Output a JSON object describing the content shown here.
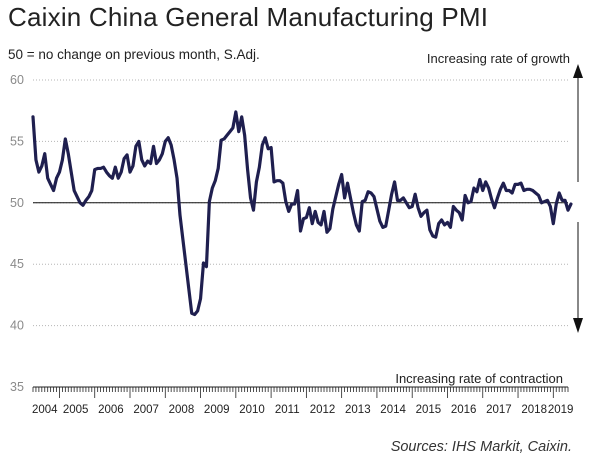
{
  "title": "Caixin China General Manufacturing PMI",
  "subtitle": "50 = no change on previous month, S.Adj.",
  "source": "Sources: IHS Markit, Caixin.",
  "chart_data": {
    "type": "line",
    "title": "Caixin China General Manufacturing PMI",
    "ylim": [
      35,
      60
    ],
    "yticks": [
      "60",
      "55",
      "50",
      "45",
      "40",
      "35"
    ],
    "x_range": [
      "2004-04",
      "2019-06"
    ],
    "x_labels": [
      "2004",
      "2005",
      "2006",
      "2007",
      "2008",
      "2009",
      "2010",
      "2011",
      "2012",
      "2013",
      "2014",
      "2015",
      "2016",
      "2017",
      "2018",
      "2019"
    ],
    "reference_line": 50,
    "annotations": {
      "top": "Increasing rate of growth",
      "bottom": "Increasing rate of contraction"
    },
    "series": [
      {
        "color": "#1f1f4f",
        "points": [
          [
            "2004-04",
            57.0
          ],
          [
            "2004-05",
            53.5
          ],
          [
            "2004-06",
            52.5
          ],
          [
            "2004-07",
            53.0
          ],
          [
            "2004-08",
            54.0
          ],
          [
            "2004-09",
            52.0
          ],
          [
            "2004-10",
            51.5
          ],
          [
            "2004-11",
            51.0
          ],
          [
            "2004-12",
            52.0
          ],
          [
            "2005-01",
            52.5
          ],
          [
            "2005-02",
            53.5
          ],
          [
            "2005-03",
            55.2
          ],
          [
            "2005-04",
            54.0
          ],
          [
            "2005-05",
            52.5
          ],
          [
            "2005-06",
            51.0
          ],
          [
            "2005-07",
            50.5
          ],
          [
            "2005-08",
            50.0
          ],
          [
            "2005-09",
            49.8
          ],
          [
            "2005-10",
            50.2
          ],
          [
            "2005-11",
            50.5
          ],
          [
            "2005-12",
            51.0
          ],
          [
            "2006-01",
            52.7
          ],
          [
            "2006-02",
            52.8
          ],
          [
            "2006-03",
            52.8
          ],
          [
            "2006-04",
            52.9
          ],
          [
            "2006-05",
            52.5
          ],
          [
            "2006-06",
            52.2
          ],
          [
            "2006-07",
            52.0
          ],
          [
            "2006-08",
            52.9
          ],
          [
            "2006-09",
            52.0
          ],
          [
            "2006-10",
            52.5
          ],
          [
            "2006-11",
            53.6
          ],
          [
            "2006-12",
            53.9
          ],
          [
            "2007-01",
            52.5
          ],
          [
            "2007-02",
            53.0
          ],
          [
            "2007-03",
            54.6
          ],
          [
            "2007-04",
            55.0
          ],
          [
            "2007-05",
            53.5
          ],
          [
            "2007-06",
            53.0
          ],
          [
            "2007-07",
            53.4
          ],
          [
            "2007-08",
            53.2
          ],
          [
            "2007-09",
            54.6
          ],
          [
            "2007-10",
            53.2
          ],
          [
            "2007-11",
            53.5
          ],
          [
            "2007-12",
            54.0
          ],
          [
            "2008-01",
            55.0
          ],
          [
            "2008-02",
            55.3
          ],
          [
            "2008-03",
            54.7
          ],
          [
            "2008-04",
            53.5
          ],
          [
            "2008-05",
            52.0
          ],
          [
            "2008-06",
            49.0
          ],
          [
            "2008-07",
            47.0
          ],
          [
            "2008-08",
            45.0
          ],
          [
            "2008-09",
            43.0
          ],
          [
            "2008-10",
            41.0
          ],
          [
            "2008-11",
            40.9
          ],
          [
            "2008-12",
            41.2
          ],
          [
            "2009-01",
            42.2
          ],
          [
            "2009-02",
            45.1
          ],
          [
            "2009-03",
            44.8
          ],
          [
            "2009-04",
            50.1
          ],
          [
            "2009-05",
            51.2
          ],
          [
            "2009-06",
            51.8
          ],
          [
            "2009-07",
            52.8
          ],
          [
            "2009-08",
            55.1
          ],
          [
            "2009-09",
            55.2
          ],
          [
            "2009-10",
            55.5
          ],
          [
            "2009-11",
            55.8
          ],
          [
            "2009-12",
            56.1
          ],
          [
            "2010-01",
            57.4
          ],
          [
            "2010-02",
            55.8
          ],
          [
            "2010-03",
            57.0
          ],
          [
            "2010-04",
            55.5
          ],
          [
            "2010-05",
            52.7
          ],
          [
            "2010-06",
            50.4
          ],
          [
            "2010-07",
            49.4
          ],
          [
            "2010-08",
            51.7
          ],
          [
            "2010-09",
            52.9
          ],
          [
            "2010-10",
            54.7
          ],
          [
            "2010-11",
            55.3
          ],
          [
            "2010-12",
            54.4
          ],
          [
            "2011-01",
            54.5
          ],
          [
            "2011-02",
            51.7
          ],
          [
            "2011-03",
            51.8
          ],
          [
            "2011-04",
            51.8
          ],
          [
            "2011-05",
            51.6
          ],
          [
            "2011-06",
            50.1
          ],
          [
            "2011-07",
            49.3
          ],
          [
            "2011-08",
            49.9
          ],
          [
            "2011-09",
            49.9
          ],
          [
            "2011-10",
            51.0
          ],
          [
            "2011-11",
            47.7
          ],
          [
            "2011-12",
            48.7
          ],
          [
            "2012-01",
            48.8
          ],
          [
            "2012-02",
            49.6
          ],
          [
            "2012-03",
            48.3
          ],
          [
            "2012-04",
            49.3
          ],
          [
            "2012-05",
            48.4
          ],
          [
            "2012-06",
            48.2
          ],
          [
            "2012-07",
            49.3
          ],
          [
            "2012-08",
            47.6
          ],
          [
            "2012-09",
            47.9
          ],
          [
            "2012-10",
            49.5
          ],
          [
            "2012-11",
            50.5
          ],
          [
            "2012-12",
            51.5
          ],
          [
            "2013-01",
            52.3
          ],
          [
            "2013-02",
            50.4
          ],
          [
            "2013-03",
            51.6
          ],
          [
            "2013-04",
            50.4
          ],
          [
            "2013-05",
            49.2
          ],
          [
            "2013-06",
            48.2
          ],
          [
            "2013-07",
            47.7
          ],
          [
            "2013-08",
            50.1
          ],
          [
            "2013-09",
            50.2
          ],
          [
            "2013-10",
            50.9
          ],
          [
            "2013-11",
            50.8
          ],
          [
            "2013-12",
            50.5
          ],
          [
            "2014-01",
            49.5
          ],
          [
            "2014-02",
            48.5
          ],
          [
            "2014-03",
            48.0
          ],
          [
            "2014-04",
            48.1
          ],
          [
            "2014-05",
            49.4
          ],
          [
            "2014-06",
            50.7
          ],
          [
            "2014-07",
            51.7
          ],
          [
            "2014-08",
            50.2
          ],
          [
            "2014-09",
            50.2
          ],
          [
            "2014-10",
            50.4
          ],
          [
            "2014-11",
            50.0
          ],
          [
            "2014-12",
            49.6
          ],
          [
            "2015-01",
            49.7
          ],
          [
            "2015-02",
            50.7
          ],
          [
            "2015-03",
            49.6
          ],
          [
            "2015-04",
            48.9
          ],
          [
            "2015-05",
            49.2
          ],
          [
            "2015-06",
            49.4
          ],
          [
            "2015-07",
            47.8
          ],
          [
            "2015-08",
            47.3
          ],
          [
            "2015-09",
            47.2
          ],
          [
            "2015-10",
            48.3
          ],
          [
            "2015-11",
            48.6
          ],
          [
            "2015-12",
            48.2
          ],
          [
            "2016-01",
            48.4
          ],
          [
            "2016-02",
            48.0
          ],
          [
            "2016-03",
            49.7
          ],
          [
            "2016-04",
            49.4
          ],
          [
            "2016-05",
            49.2
          ],
          [
            "2016-06",
            48.6
          ],
          [
            "2016-07",
            50.6
          ],
          [
            "2016-08",
            50.0
          ],
          [
            "2016-09",
            50.1
          ],
          [
            "2016-10",
            51.2
          ],
          [
            "2016-11",
            50.9
          ],
          [
            "2016-12",
            51.9
          ],
          [
            "2017-01",
            51.0
          ],
          [
            "2017-02",
            51.7
          ],
          [
            "2017-03",
            51.2
          ],
          [
            "2017-04",
            50.3
          ],
          [
            "2017-05",
            49.6
          ],
          [
            "2017-06",
            50.4
          ],
          [
            "2017-07",
            51.1
          ],
          [
            "2017-08",
            51.6
          ],
          [
            "2017-09",
            51.0
          ],
          [
            "2017-10",
            51.0
          ],
          [
            "2017-11",
            50.8
          ],
          [
            "2017-12",
            51.5
          ],
          [
            "2018-01",
            51.5
          ],
          [
            "2018-02",
            51.6
          ],
          [
            "2018-03",
            51.0
          ],
          [
            "2018-04",
            51.1
          ],
          [
            "2018-05",
            51.1
          ],
          [
            "2018-06",
            51.0
          ],
          [
            "2018-07",
            50.8
          ],
          [
            "2018-08",
            50.6
          ],
          [
            "2018-09",
            50.0
          ],
          [
            "2018-10",
            50.1
          ],
          [
            "2018-11",
            50.2
          ],
          [
            "2018-12",
            49.7
          ],
          [
            "2019-01",
            48.3
          ],
          [
            "2019-02",
            49.9
          ],
          [
            "2019-03",
            50.8
          ],
          [
            "2019-04",
            50.2
          ],
          [
            "2019-05",
            50.2
          ],
          [
            "2019-06",
            49.4
          ],
          [
            "2019-07",
            49.9
          ]
        ]
      }
    ]
  }
}
